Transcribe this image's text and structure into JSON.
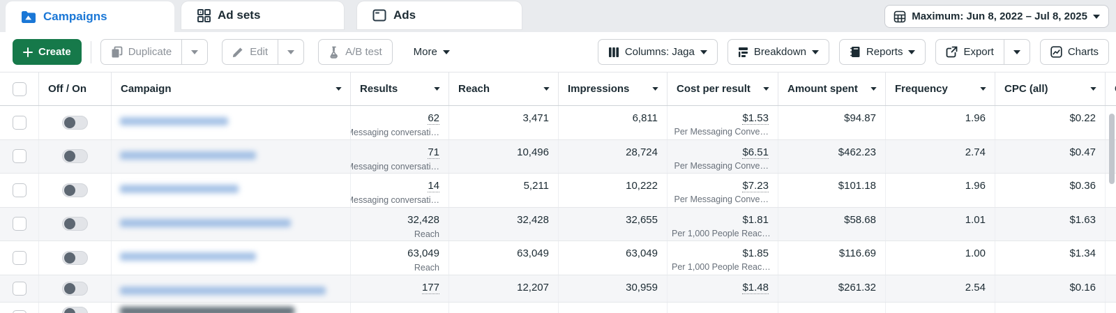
{
  "tabs": {
    "campaigns": "Campaigns",
    "ad_sets": "Ad sets",
    "ads": "Ads",
    "date_range": "Maximum: Jun 8, 2022 – Jul 8, 2025"
  },
  "toolbar": {
    "create": "Create",
    "duplicate": "Duplicate",
    "edit": "Edit",
    "ab_test": "A/B test",
    "more": "More",
    "columns": "Columns: Jaga",
    "breakdown": "Breakdown",
    "reports": "Reports",
    "export": "Export",
    "charts": "Charts"
  },
  "table": {
    "headers": [
      "Off / On",
      "Campaign",
      "Results",
      "Reach",
      "Impressions",
      "Cost per result",
      "Amount spent",
      "Frequency",
      "CPC (all)"
    ],
    "next_column_clipped": "C",
    "rows": [
      {
        "name_redacted": true,
        "name_w": 155,
        "results": "62",
        "results_sub": "Messaging conversati…",
        "results_dotted": true,
        "reach": "3,471",
        "impressions": "6,811",
        "cost": "$1.53",
        "cost_sub": "Per Messaging Conve…",
        "cost_dotted": true,
        "spent": "$94.87",
        "frequency": "1.96",
        "cpc": "$0.22"
      },
      {
        "name_redacted": true,
        "name_w": 195,
        "results": "71",
        "results_sub": "Messaging conversati…",
        "results_dotted": true,
        "reach": "10,496",
        "impressions": "28,724",
        "cost": "$6.51",
        "cost_sub": "Per Messaging Conve…",
        "cost_dotted": true,
        "spent": "$462.23",
        "frequency": "2.74",
        "cpc": "$0.47"
      },
      {
        "name_redacted": true,
        "name_w": 170,
        "results": "14",
        "results_sub": "Messaging conversati…",
        "results_dotted": true,
        "reach": "5,211",
        "impressions": "10,222",
        "cost": "$7.23",
        "cost_sub": "Per Messaging Conve…",
        "cost_dotted": true,
        "spent": "$101.18",
        "frequency": "1.96",
        "cpc": "$0.36"
      },
      {
        "name_redacted": true,
        "name_w": 245,
        "results": "32,428",
        "results_sub": "Reach",
        "results_dotted": false,
        "reach": "32,428",
        "impressions": "32,655",
        "cost": "$1.81",
        "cost_sub": "Per 1,000 People Reac…",
        "cost_dotted": false,
        "spent": "$58.68",
        "frequency": "1.01",
        "cpc": "$1.63"
      },
      {
        "name_redacted": true,
        "name_w": 195,
        "results": "63,049",
        "results_sub": "Reach",
        "results_dotted": false,
        "reach": "63,049",
        "impressions": "63,049",
        "cost": "$1.85",
        "cost_sub": "Per 1,000 People Reac…",
        "cost_dotted": false,
        "spent": "$116.69",
        "frequency": "1.00",
        "cpc": "$1.34"
      },
      {
        "name_redacted": true,
        "name_w": 295,
        "results": "177",
        "results_sub": "",
        "results_dotted": true,
        "reach": "12,207",
        "impressions": "30,959",
        "cost": "$1.48",
        "cost_sub": "",
        "cost_dotted": true,
        "spent": "$261.32",
        "frequency": "2.54",
        "cpc": "$0.16"
      },
      {
        "name_redacted": true,
        "name_w": 250,
        "dark": true,
        "partial": true,
        "results": "",
        "results_sub": "",
        "results_dotted": false,
        "reach": "",
        "impressions": "",
        "cost": "",
        "cost_sub": "",
        "cost_dotted": false,
        "spent": "",
        "frequency": "",
        "cpc": ""
      }
    ]
  },
  "icons": {
    "campaigns": "folder-chart",
    "ad_sets": "grid-squares",
    "ads": "window",
    "date": "calendar-grid",
    "create": "plus",
    "duplicate": "copy",
    "edit": "pencil",
    "ab_test": "flask",
    "columns": "three-vertical-bars",
    "breakdown": "stacked-bars",
    "reports": "notebook",
    "export": "box-arrow-up-right",
    "charts": "line-chart",
    "sort": "caret-down"
  },
  "colors": {
    "accent_blue": "#1a77d6",
    "green_button": "#16794a",
    "text_dark": "#1c2b33",
    "text_gray": "#68707a",
    "text_disabled": "#8b9198",
    "tab_strip_bg": "#e9ebee",
    "row_zebra": "#f5f6f8",
    "border": "#cfd2d6",
    "scrollbar": "#c2c6cc"
  }
}
